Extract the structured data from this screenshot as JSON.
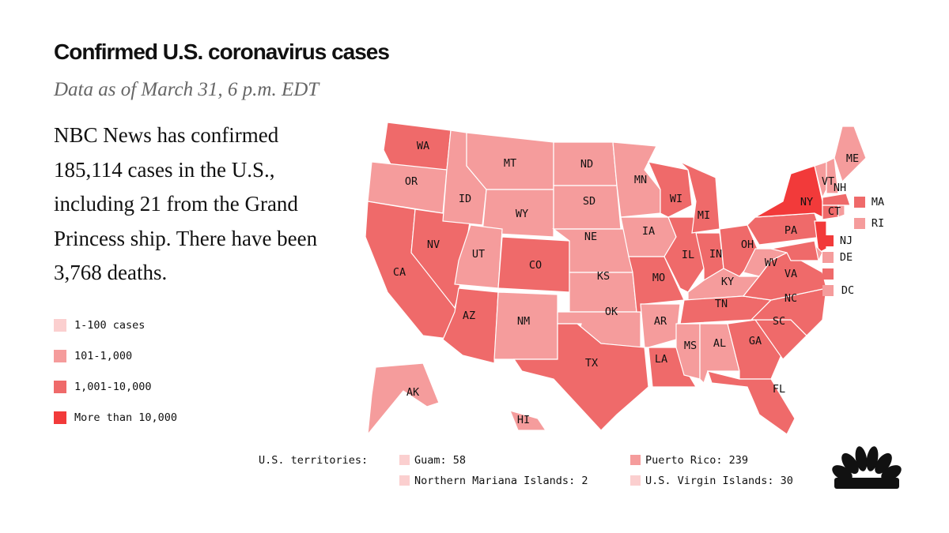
{
  "title": "Confirmed U.S. coronavirus cases",
  "subtitle": "Data as of March 31, 6 p.m. EDT",
  "summary": "NBC News has confirmed 185,114 cases in the U.S., including 21 from the Grand Princess ship.  There have been 3,768 deaths.",
  "legend": [
    {
      "label": "1-100 cases",
      "color": "#fbcfcf"
    },
    {
      "label": "101-1,000",
      "color": "#f59c9c"
    },
    {
      "label": "1,001-10,000",
      "color": "#ef6a6a"
    },
    {
      "label": "More than 10,000",
      "color": "#f23a3a"
    }
  ],
  "states": [
    {
      "label": "WA",
      "level": 2
    },
    {
      "label": "OR",
      "level": 1
    },
    {
      "label": "CA",
      "level": 2
    },
    {
      "label": "NV",
      "level": 2
    },
    {
      "label": "ID",
      "level": 1
    },
    {
      "label": "MT",
      "level": 1
    },
    {
      "label": "WY",
      "level": 1
    },
    {
      "label": "UT",
      "level": 1
    },
    {
      "label": "CO",
      "level": 2
    },
    {
      "label": "AZ",
      "level": 2
    },
    {
      "label": "NM",
      "level": 1
    },
    {
      "label": "ND",
      "level": 1
    },
    {
      "label": "SD",
      "level": 1
    },
    {
      "label": "NE",
      "level": 1
    },
    {
      "label": "KS",
      "level": 1
    },
    {
      "label": "OK",
      "level": 1
    },
    {
      "label": "TX",
      "level": 2
    },
    {
      "label": "MN",
      "level": 1
    },
    {
      "label": "IA",
      "level": 1
    },
    {
      "label": "MO",
      "level": 2
    },
    {
      "label": "AR",
      "level": 1
    },
    {
      "label": "LA",
      "level": 2
    },
    {
      "label": "WI",
      "level": 2
    },
    {
      "label": "IL",
      "level": 2
    },
    {
      "label": "MI",
      "level": 2
    },
    {
      "label": "IN",
      "level": 2
    },
    {
      "label": "OH",
      "level": 2
    },
    {
      "label": "KY",
      "level": 1
    },
    {
      "label": "TN",
      "level": 2
    },
    {
      "label": "MS",
      "level": 1
    },
    {
      "label": "AL",
      "level": 1
    },
    {
      "label": "GA",
      "level": 2
    },
    {
      "label": "FL",
      "level": 2
    },
    {
      "label": "SC",
      "level": 2
    },
    {
      "label": "NC",
      "level": 2
    },
    {
      "label": "VA",
      "level": 2
    },
    {
      "label": "WV",
      "level": 1
    },
    {
      "label": "PA",
      "level": 2
    },
    {
      "label": "NY",
      "level": 3
    },
    {
      "label": "NJ",
      "level": 3
    },
    {
      "label": "DE",
      "level": 1
    },
    {
      "label": null,
      "level": 2
    },
    {
      "label": "VT",
      "level": 1
    },
    {
      "label": "NH",
      "level": 1
    },
    {
      "label": "ME",
      "level": 1
    },
    {
      "label": "MA",
      "level": 2
    },
    {
      "label": "CT",
      "level": 2
    },
    {
      "label": "RI",
      "level": 1
    },
    {
      "label": "DC",
      "level": 1
    },
    {
      "label": "AK",
      "level": 1
    },
    {
      "label": "HI",
      "level": 1
    }
  ],
  "territories_label": "U.S. territories:",
  "territories": [
    {
      "label": "Guam: 58",
      "level": 0
    },
    {
      "label": "Northern Mariana Islands: 2",
      "level": 0
    },
    {
      "label": "Puerto Rico: 239",
      "level": 1
    },
    {
      "label": "U.S. Virgin Islands: 30",
      "level": 0
    }
  ]
}
